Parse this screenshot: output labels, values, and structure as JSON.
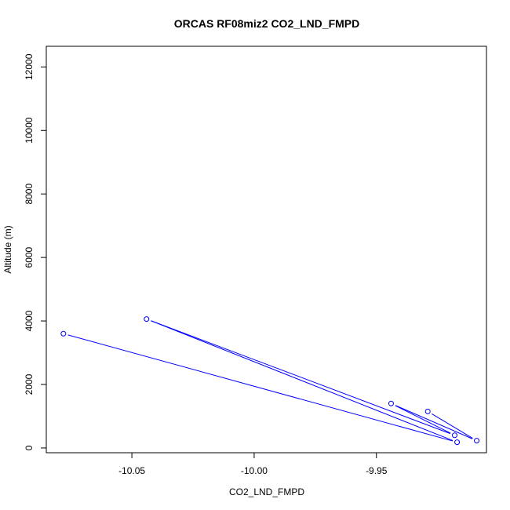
{
  "chart_data": {
    "type": "line",
    "title": "ORCAS RF08miz2 CO2_LND_FMPD",
    "xlabel": "CO2_LND_FMPD",
    "ylabel": "Altitude (m)",
    "xlim": [
      -10.085,
      -9.905
    ],
    "ylim": [
      -150,
      12650
    ],
    "x_ticks": [
      -10.05,
      -10.0,
      -9.95
    ],
    "x_tick_labels": [
      "-10.05",
      "-10.00",
      "-9.95"
    ],
    "y_ticks": [
      0,
      2000,
      4000,
      6000,
      8000,
      10000,
      12000
    ],
    "y_tick_labels": [
      "0",
      "2000",
      "4000",
      "6000",
      "8000",
      "10000",
      "12000"
    ],
    "grid": false,
    "colors": {
      "series": "#0000ff"
    },
    "series": [
      {
        "points": [
          {
            "x": -9.929,
            "y": 1150
          },
          {
            "x": -9.909,
            "y": 230
          },
          {
            "x": -9.944,
            "y": 1400
          },
          {
            "x": -9.918,
            "y": 400
          },
          {
            "x": -10.044,
            "y": 4060
          },
          {
            "x": -9.917,
            "y": 180
          },
          {
            "x": -10.078,
            "y": 3600
          }
        ]
      }
    ]
  }
}
